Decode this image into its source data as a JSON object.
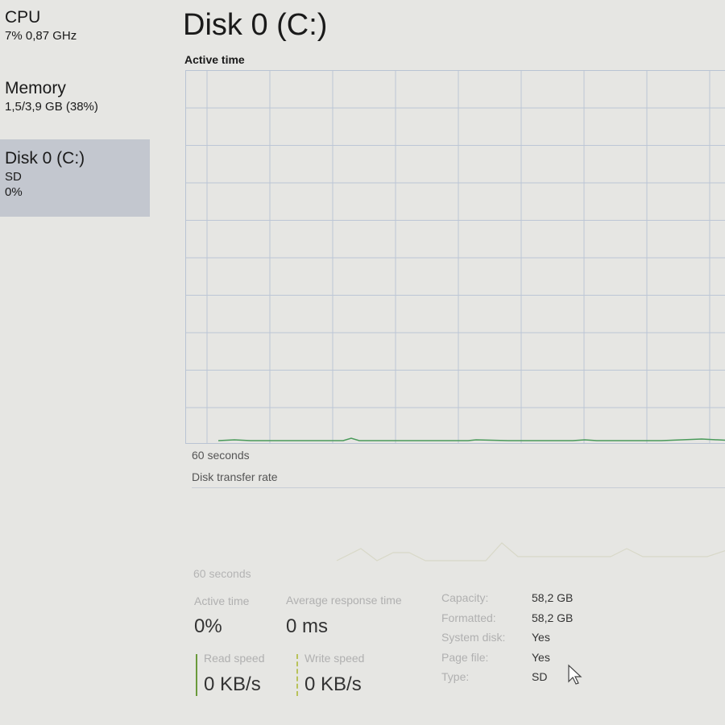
{
  "sidebar": {
    "items": [
      {
        "title": "CPU",
        "sub": "7% 0,87 GHz"
      },
      {
        "title": "Memory",
        "sub": "1,5/3,9 GB (38%)"
      },
      {
        "title": "Disk 0 (C:)",
        "sub": "SD",
        "sub2": "0%"
      }
    ]
  },
  "header": {
    "title": "Disk 0 (C:)"
  },
  "charts": {
    "active_time_label": "Active time",
    "active_time_axis": "60 seconds",
    "transfer_label": "Disk transfer rate",
    "transfer_axis": "60 seconds",
    "line_color": "#4a9a5a",
    "active_time_percent": 0
  },
  "stats": {
    "active_time": {
      "label": "Active time",
      "value": "0%"
    },
    "response": {
      "label": "Average response time",
      "value": "0 ms"
    },
    "read": {
      "label": "Read speed",
      "value": "0 KB/s"
    },
    "write": {
      "label": "Write speed",
      "value": "0 KB/s"
    },
    "props": [
      {
        "k": "Capacity:",
        "v": "58,2 GB"
      },
      {
        "k": "Formatted:",
        "v": "58,2 GB"
      },
      {
        "k": "System disk:",
        "v": "Yes"
      },
      {
        "k": "Page file:",
        "v": "Yes"
      },
      {
        "k": "Type:",
        "v": "SD"
      }
    ]
  }
}
